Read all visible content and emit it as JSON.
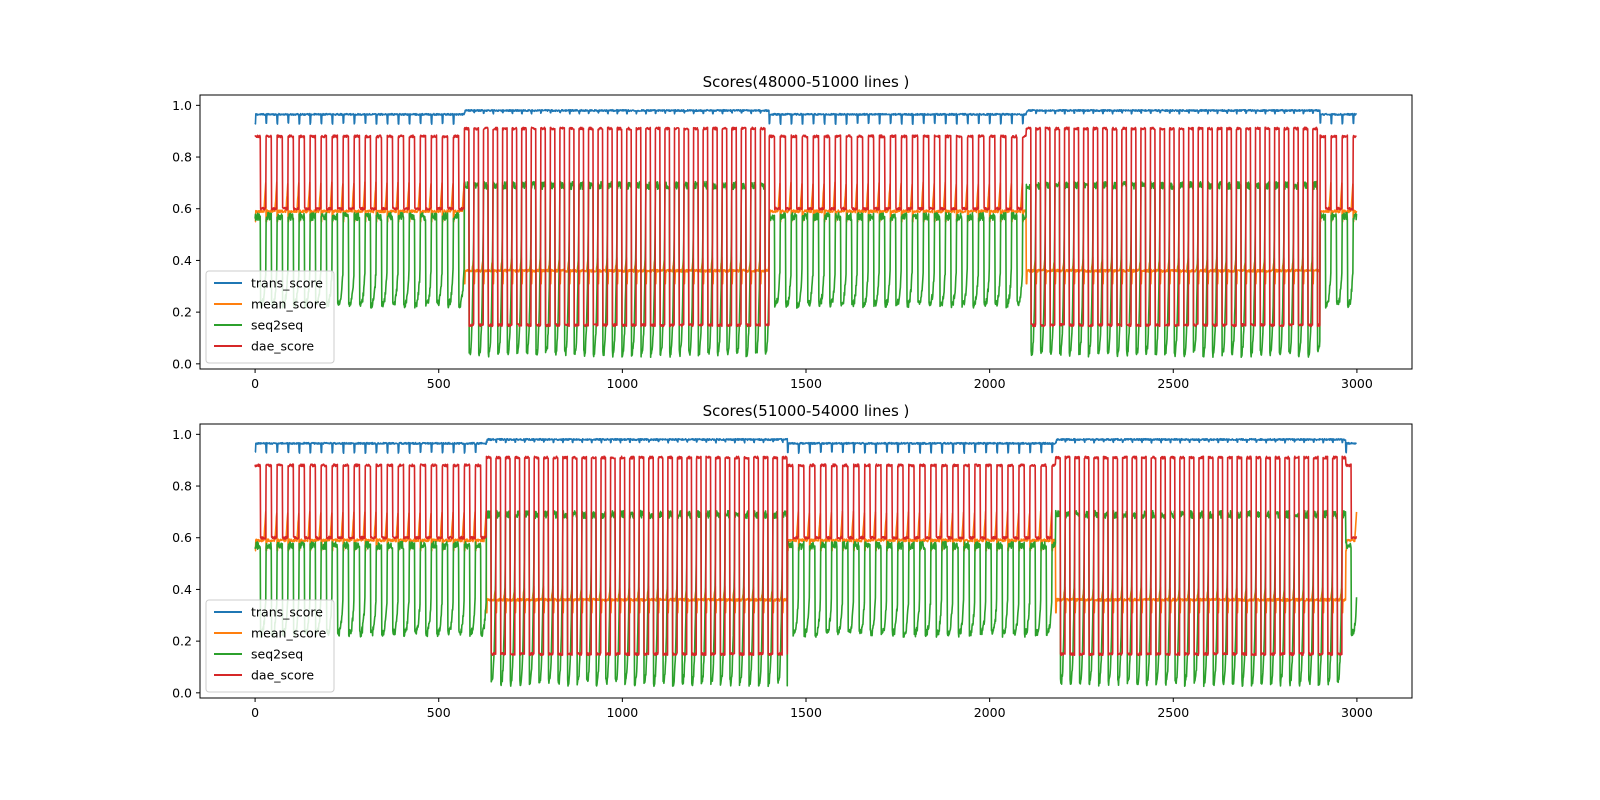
{
  "chart_data": [
    {
      "type": "line",
      "title": "Scores(48000-51000 lines )",
      "xlabel": "",
      "ylabel": "",
      "xlim": [
        -150,
        3150
      ],
      "ylim": [
        -0.02,
        1.04
      ],
      "xticks": [
        0,
        500,
        1000,
        1500,
        2000,
        2500,
        3000
      ],
      "xtick_labels": [
        "0",
        "500",
        "1000",
        "1500",
        "2000",
        "2500",
        "3000"
      ],
      "yticks": [
        0.0,
        0.2,
        0.4,
        0.6,
        0.8,
        1.0
      ],
      "ytick_labels": [
        "0.0",
        "0.2",
        "0.4",
        "0.6",
        "0.8",
        "1.0"
      ],
      "grid": false,
      "legend_position": "lower-left",
      "x_count": 3000,
      "phases": [
        {
          "start": 0,
          "end": 570,
          "regime": "A",
          "period": 30
        },
        {
          "start": 570,
          "end": 1400,
          "regime": "B",
          "period": 26
        },
        {
          "start": 1400,
          "end": 2100,
          "regime": "A",
          "period": 30
        },
        {
          "start": 2100,
          "end": 2900,
          "regime": "B",
          "period": 26
        },
        {
          "start": 2900,
          "end": 3000,
          "regime": "A",
          "period": 30
        }
      ],
      "series": [
        {
          "name": "trans_score",
          "color": "#1f77b4",
          "regime_A": {
            "base": 0.965,
            "dip": 0.93
          },
          "regime_B": {
            "base": 0.98,
            "dip": 0.97
          }
        },
        {
          "name": "mean_score",
          "color": "#ff7f0e",
          "regime_A": {
            "base": 0.59,
            "dip": 0.55,
            "peak": 0.72
          },
          "regime_B": {
            "base": 0.36,
            "dip": 0.31,
            "peak": 0.42
          }
        },
        {
          "name": "seq2seq",
          "color": "#2ca02c",
          "regime_A": {
            "high": 0.57,
            "low": 0.23,
            "peak": 0.45
          },
          "regime_B": {
            "high": 0.69,
            "low": 0.04,
            "peak": 0.86
          }
        },
        {
          "name": "dae_score",
          "color": "#d62728",
          "regime_A": {
            "high": 0.88,
            "low": 0.6
          },
          "regime_B": {
            "high": 0.91,
            "low": 0.15
          }
        }
      ]
    },
    {
      "type": "line",
      "title": "Scores(51000-54000 lines )",
      "xlabel": "",
      "ylabel": "",
      "xlim": [
        -150,
        3150
      ],
      "ylim": [
        -0.02,
        1.04
      ],
      "xticks": [
        0,
        500,
        1000,
        1500,
        2000,
        2500,
        3000
      ],
      "xtick_labels": [
        "0",
        "500",
        "1000",
        "1500",
        "2000",
        "2500",
        "3000"
      ],
      "yticks": [
        0.0,
        0.2,
        0.4,
        0.6,
        0.8,
        1.0
      ],
      "ytick_labels": [
        "0.0",
        "0.2",
        "0.4",
        "0.6",
        "0.8",
        "1.0"
      ],
      "grid": false,
      "legend_position": "lower-left",
      "x_count": 3000,
      "phases": [
        {
          "start": 0,
          "end": 630,
          "regime": "A",
          "period": 30
        },
        {
          "start": 630,
          "end": 1450,
          "regime": "B",
          "period": 26
        },
        {
          "start": 1450,
          "end": 2180,
          "regime": "A",
          "period": 30
        },
        {
          "start": 2180,
          "end": 2970,
          "regime": "B",
          "period": 26
        },
        {
          "start": 2970,
          "end": 3000,
          "regime": "A",
          "period": 30
        }
      ],
      "series": [
        {
          "name": "trans_score",
          "color": "#1f77b4",
          "regime_A": {
            "base": 0.965,
            "dip": 0.93
          },
          "regime_B": {
            "base": 0.98,
            "dip": 0.97
          }
        },
        {
          "name": "mean_score",
          "color": "#ff7f0e",
          "regime_A": {
            "base": 0.59,
            "dip": 0.55,
            "peak": 0.72
          },
          "regime_B": {
            "base": 0.36,
            "dip": 0.31,
            "peak": 0.42
          }
        },
        {
          "name": "seq2seq",
          "color": "#2ca02c",
          "regime_A": {
            "high": 0.57,
            "low": 0.23,
            "peak": 0.45
          },
          "regime_B": {
            "high": 0.69,
            "low": 0.04,
            "peak": 0.86
          }
        },
        {
          "name": "dae_score",
          "color": "#d62728",
          "regime_A": {
            "high": 0.88,
            "low": 0.6
          },
          "regime_B": {
            "high": 0.91,
            "low": 0.15
          }
        }
      ]
    }
  ]
}
